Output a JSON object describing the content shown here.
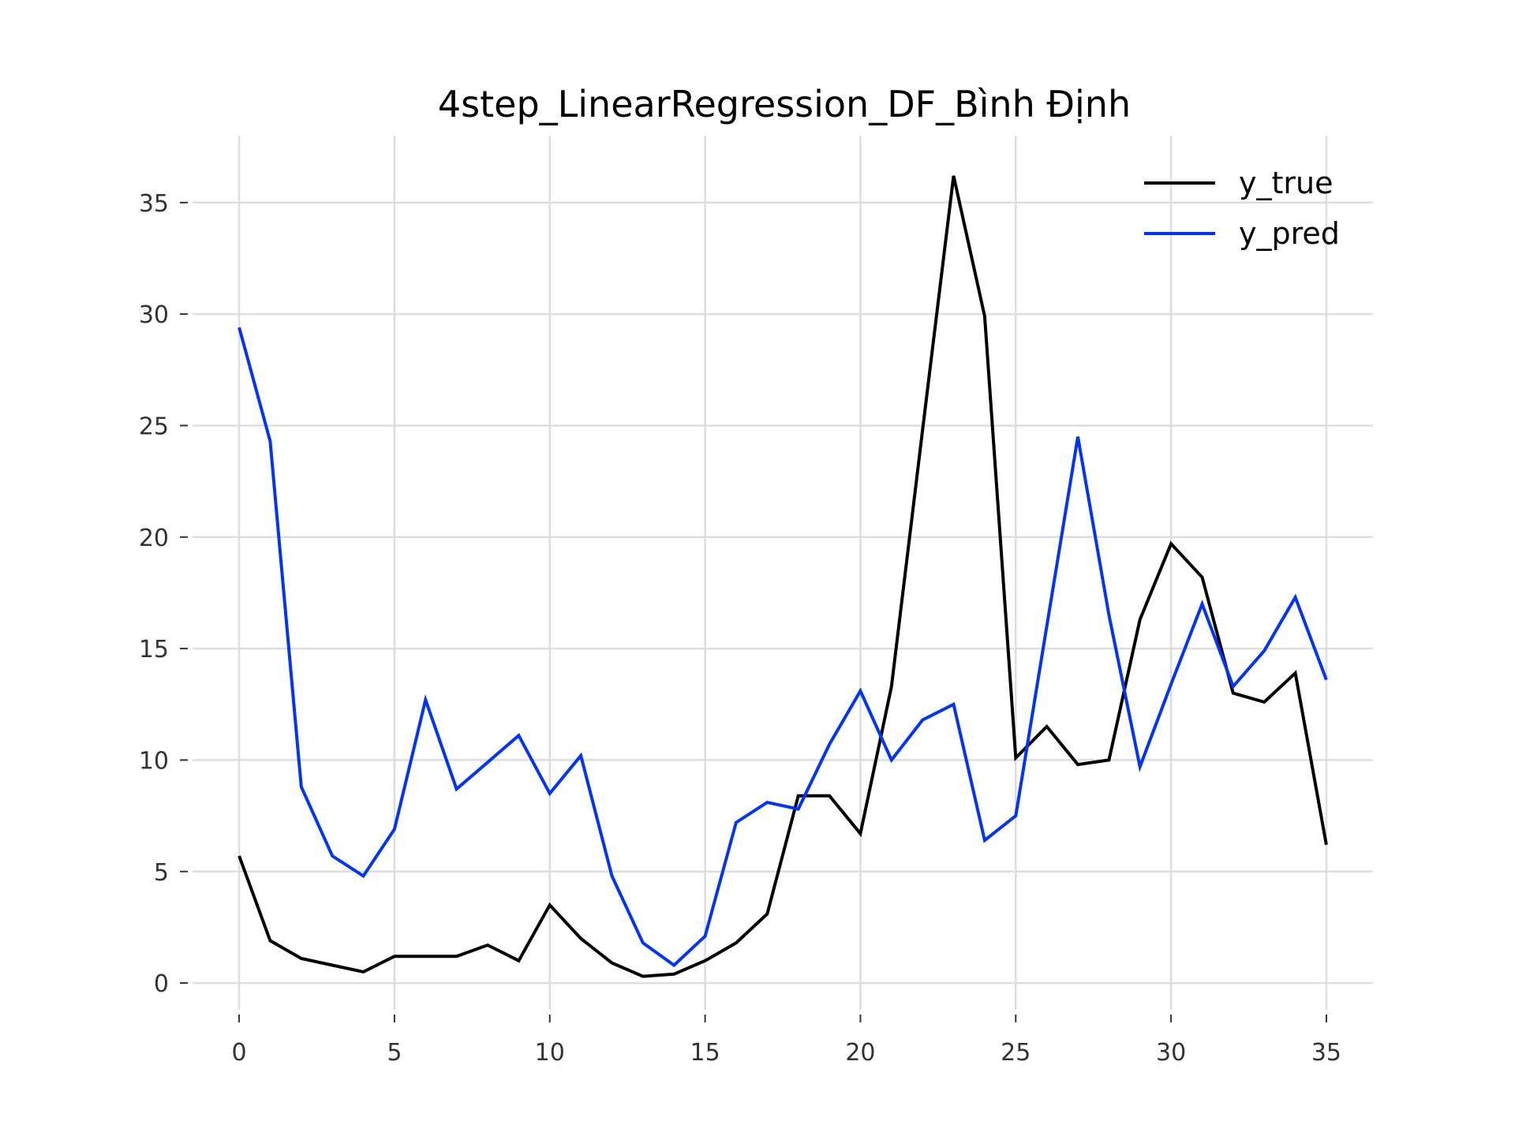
{
  "chart_data": {
    "type": "line",
    "title": "4step_LinearRegression_DF_Bình Định",
    "xlabel": "",
    "ylabel": "",
    "xlim": [
      -1.5,
      36.5
    ],
    "ylim": [
      -1.2,
      38.0
    ],
    "grid": true,
    "legend_position": "top-right",
    "x_ticks": [
      0,
      5,
      10,
      15,
      20,
      25,
      30,
      35
    ],
    "y_ticks": [
      0,
      5,
      10,
      15,
      20,
      25,
      30,
      35
    ],
    "x_tick_labels": [
      "0",
      "5",
      "10",
      "15",
      "20",
      "25",
      "30",
      "35"
    ],
    "y_tick_labels": [
      "0",
      "5",
      "10",
      "15",
      "20",
      "25",
      "30",
      "35"
    ],
    "x": [
      0,
      1,
      2,
      3,
      4,
      5,
      6,
      7,
      8,
      9,
      10,
      11,
      12,
      13,
      14,
      15,
      16,
      17,
      18,
      19,
      20,
      21,
      22,
      23,
      24,
      25,
      26,
      27,
      28,
      29,
      30,
      31,
      32,
      33,
      34,
      35
    ],
    "series": [
      {
        "name": "y_true",
        "color": "#000000",
        "values": [
          5.7,
          1.9,
          1.1,
          0.8,
          0.5,
          1.2,
          1.2,
          1.2,
          1.7,
          1.0,
          3.5,
          2.0,
          0.9,
          0.3,
          0.4,
          1.0,
          1.8,
          3.1,
          8.4,
          8.4,
          6.7,
          13.3,
          24.8,
          36.2,
          29.9,
          10.1,
          11.5,
          9.8,
          10.0,
          16.3,
          19.7,
          18.2,
          13.0,
          12.6,
          13.9,
          6.2
        ]
      },
      {
        "name": "y_pred",
        "color": "#0033ff",
        "values": [
          29.4,
          24.3,
          8.8,
          5.7,
          4.8,
          6.9,
          12.7,
          8.7,
          9.9,
          11.1,
          8.5,
          10.2,
          4.8,
          1.8,
          0.8,
          2.1,
          7.2,
          8.1,
          7.8,
          10.7,
          13.1,
          10.0,
          11.8,
          12.5,
          6.4,
          7.5,
          16.0,
          24.5,
          16.5,
          9.7,
          13.4,
          17.0,
          13.3,
          14.9,
          17.3,
          13.6
        ]
      }
    ]
  }
}
